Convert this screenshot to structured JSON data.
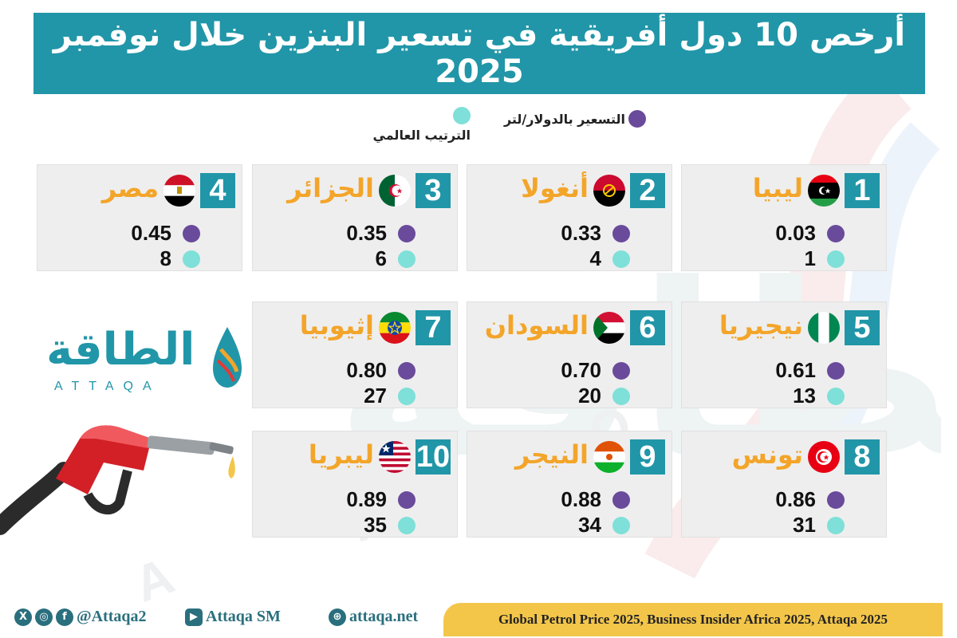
{
  "title": "أرخص 10 دول أفريقية في تسعير البنزين خلال نوفمبر 2025",
  "legend": {
    "price_label": "التسعير بالدولار/لتر",
    "rank_label": "الترتيب العالمي",
    "price_color": "#6a4a9b",
    "rank_color": "#7ee0d8"
  },
  "accent_color": "#2196a8",
  "name_color": "#f3a52a",
  "countries": [
    {
      "rank": "1",
      "name": "ليبيا",
      "price": "0.03",
      "world_rank": "1",
      "flag": "libya-flag"
    },
    {
      "rank": "2",
      "name": "أنغولا",
      "price": "0.33",
      "world_rank": "4",
      "flag": "angola-flag"
    },
    {
      "rank": "3",
      "name": "الجزائر",
      "price": "0.35",
      "world_rank": "6",
      "flag": "algeria-flag"
    },
    {
      "rank": "4",
      "name": "مصر",
      "price": "0.45",
      "world_rank": "8",
      "flag": "egypt-flag"
    },
    {
      "rank": "5",
      "name": "نيجيريا",
      "price": "0.61",
      "world_rank": "13",
      "flag": "nigeria-flag"
    },
    {
      "rank": "6",
      "name": "السودان",
      "price": "0.70",
      "world_rank": "20",
      "flag": "sudan-flag"
    },
    {
      "rank": "7",
      "name": "إثيوبيا",
      "price": "0.80",
      "world_rank": "27",
      "flag": "ethiopia-flag"
    },
    {
      "rank": "8",
      "name": "تونس",
      "price": "0.86",
      "world_rank": "31",
      "flag": "tunisia-flag"
    },
    {
      "rank": "9",
      "name": "النيجر",
      "price": "0.88",
      "world_rank": "34",
      "flag": "niger-flag"
    },
    {
      "rank": "10",
      "name": "ليبريا",
      "price": "0.89",
      "world_rank": "35",
      "flag": "liberia-flag"
    }
  ],
  "logo": {
    "arabic": "الطاقة",
    "latin": "ATTAQA"
  },
  "footer": {
    "handle": "@Attaqa2",
    "youtube": "Attaqa SM",
    "website": "attaqa.net",
    "source": "Global Petrol Price 2025, Business Insider Africa 2025, Attaqa 2025"
  }
}
